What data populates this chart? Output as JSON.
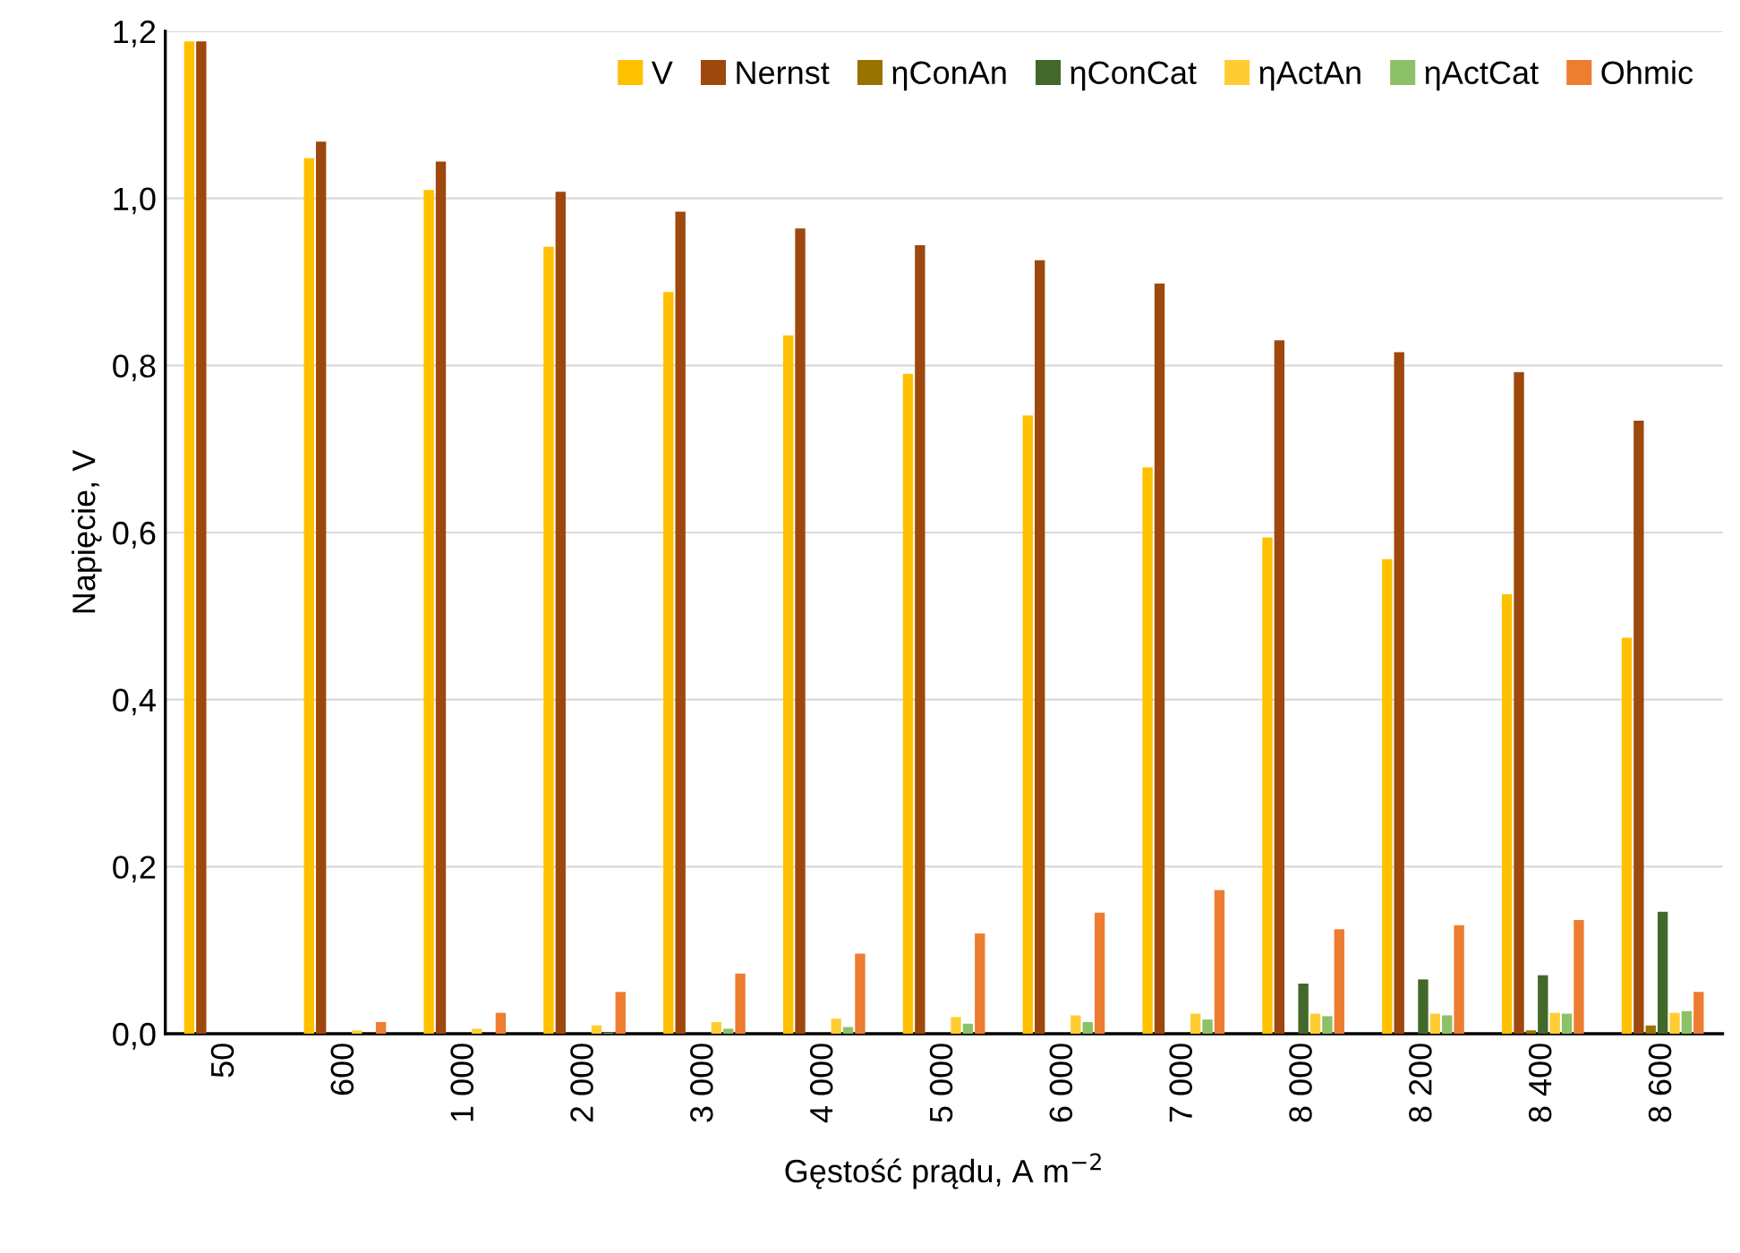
{
  "chart_data": {
    "type": "bar",
    "xlabel": "Gęstość prądu, A m$^{−2}$",
    "ylabel": "Napięcie, V",
    "categories": [
      "50",
      "600",
      "1 000",
      "2 000",
      "3 000",
      "4 000",
      "5 000",
      "6 000",
      "7 000",
      "8 000",
      "8 200",
      "8 400",
      "8 600"
    ],
    "series": [
      {
        "name": "V",
        "color": "#ffc000",
        "values": [
          1.188,
          1.048,
          1.01,
          0.942,
          0.888,
          0.836,
          0.79,
          0.74,
          0.678,
          0.594,
          0.568,
          0.526,
          0.474
        ]
      },
      {
        "name": "Nernst",
        "color": "#9e480e",
        "values": [
          1.188,
          1.068,
          1.044,
          1.008,
          0.984,
          0.964,
          0.944,
          0.926,
          0.898,
          0.83,
          0.816,
          0.792,
          0.734
        ]
      },
      {
        "name": "ηConAn",
        "color": "#997300",
        "values": [
          0,
          0,
          0,
          0,
          0,
          0,
          0,
          0,
          0,
          0,
          0,
          0.004,
          0.01
        ]
      },
      {
        "name": "ηConCat",
        "color": "#43682b",
        "values": [
          0,
          0,
          0,
          0,
          0,
          0,
          0,
          0,
          0,
          0.06,
          0.065,
          0.07,
          0.146
        ]
      },
      {
        "name": "ηActAn",
        "color": "#ffcd33",
        "values": [
          0,
          0.004,
          0.006,
          0.01,
          0.014,
          0.018,
          0.02,
          0.022,
          0.024,
          0.024,
          0.024,
          0.025,
          0.025
        ]
      },
      {
        "name": "ηActCat",
        "color": "#8cc168",
        "values": [
          0,
          0,
          0,
          0.001,
          0.006,
          0.008,
          0.012,
          0.014,
          0.017,
          0.021,
          0.022,
          0.024,
          0.027
        ]
      },
      {
        "name": "Ohmic",
        "color": "#ed7d31",
        "values": [
          0,
          0.014,
          0.025,
          0.05,
          0.072,
          0.096,
          0.12,
          0.145,
          0.172,
          0.125,
          0.13,
          0.136,
          0.05
        ]
      }
    ],
    "ylim": [
      0,
      1.2
    ],
    "yticks": [
      {
        "value": 0,
        "label": "0,0"
      },
      {
        "value": 0.2,
        "label": "0,2"
      },
      {
        "value": 0.4,
        "label": "0,4"
      },
      {
        "value": 0.6,
        "label": "0,6"
      },
      {
        "value": 0.8,
        "label": "0,8"
      },
      {
        "value": 1.0,
        "label": "1,0"
      },
      {
        "value": 1.2,
        "label": "1,2"
      }
    ],
    "grid": "y",
    "legend": "top right"
  }
}
